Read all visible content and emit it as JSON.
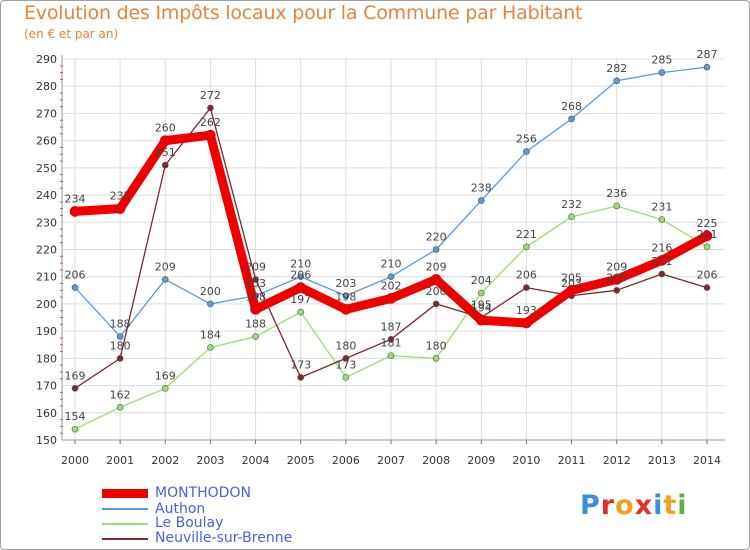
{
  "chart_data": {
    "type": "line",
    "title": "Evolution des Impôts locaux pour la Commune par Habitant",
    "subtitle": "(en € et par an)",
    "xlabel": "",
    "ylabel": "",
    "x": [
      "2000",
      "2001",
      "2002",
      "2003",
      "2004",
      "2005",
      "2006",
      "2007",
      "2008",
      "2009",
      "2010",
      "2011",
      "2012",
      "2013",
      "2014"
    ],
    "ylim": [
      150,
      290
    ],
    "yticks": [
      150,
      160,
      170,
      180,
      190,
      200,
      210,
      220,
      230,
      240,
      250,
      260,
      270,
      280,
      290
    ],
    "grid": true,
    "legend_position": "bottom",
    "series": [
      {
        "name": "Authon",
        "color": "#5b9bd5",
        "values": [
          206,
          188,
          209,
          200,
          203,
          210,
          203,
          210,
          220,
          238,
          256,
          268,
          282,
          285,
          287
        ]
      },
      {
        "name": "Le Boulay",
        "color": "#99dd77",
        "values": [
          154,
          162,
          169,
          184,
          188,
          197,
          173,
          181,
          180,
          204,
          221,
          232,
          236,
          231,
          221
        ]
      },
      {
        "name": "Neuville-sur-Brenne",
        "color": "#7a2a2a",
        "values": [
          169,
          180,
          251,
          272,
          209,
          173,
          180,
          187,
          200,
          195,
          206,
          203,
          205,
          211,
          206
        ]
      },
      {
        "name": "MONTHODON",
        "color": "#ee0000",
        "values": [
          234,
          235,
          260,
          262,
          198,
          206,
          198,
          202,
          209,
          194,
          193,
          205,
          209,
          216,
          225
        ]
      }
    ],
    "legend": [
      "MONTHODON",
      "Authon",
      "Le Boulay",
      "Neuville-sur-Brenne"
    ]
  },
  "logo": {
    "text": "Proxiti",
    "letters": [
      "P",
      "r",
      "o",
      "x",
      "i",
      "t",
      "i"
    ],
    "colors": [
      "#3a8fd8",
      "#e0302a",
      "#f0a020",
      "#e0302a",
      "#3a8fd8",
      "#f0a020",
      "#60b040"
    ]
  }
}
